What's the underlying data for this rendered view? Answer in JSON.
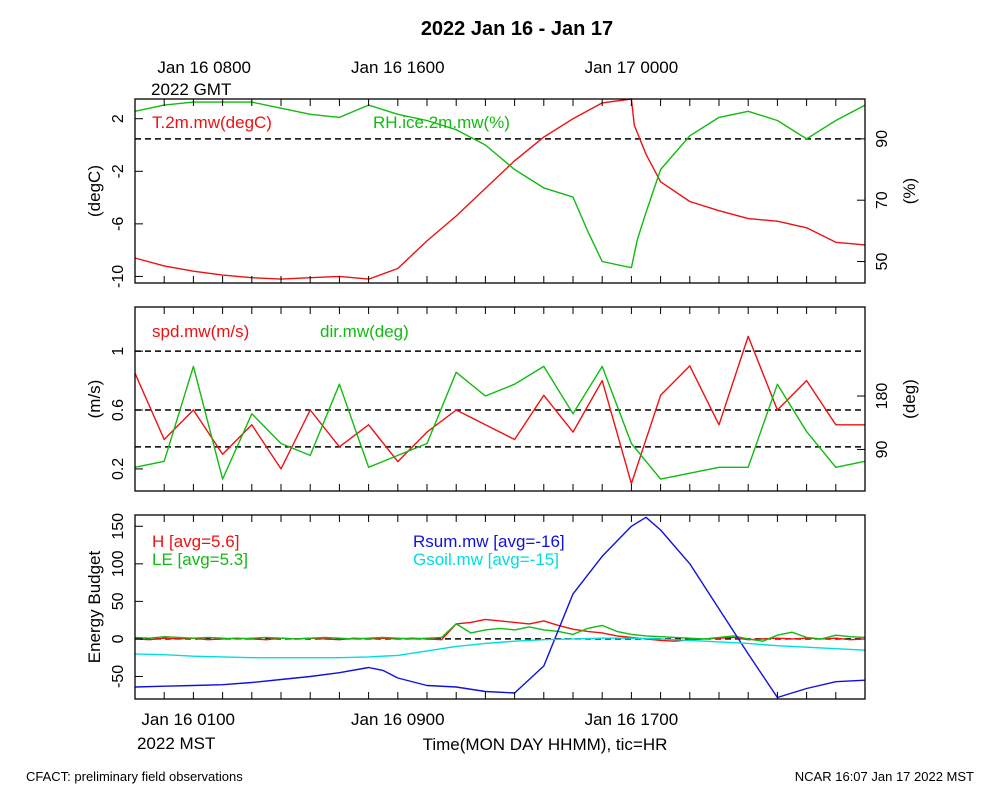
{
  "title": "2022 Jan 16 - Jan 17",
  "top_time_labels": [
    {
      "line1": "Jan 16 0800",
      "line2": "2022 GMT",
      "hour": 1
    },
    {
      "line1": "Jan 16 1600",
      "line2": "",
      "hour": 9
    },
    {
      "line1": "Jan 17 0000",
      "line2": "",
      "hour": 17
    }
  ],
  "bottom_time_labels": [
    {
      "line1": "Jan 16 0100",
      "line2": "2022 MST",
      "hour": 1
    },
    {
      "line1": "Jan 16 0900",
      "line2": "",
      "hour": 9
    },
    {
      "line1": "Jan 16 1700",
      "line2": "",
      "hour": 17
    }
  ],
  "xlabel": "Time(MON DAY HHMM), tic=HR",
  "footer_left": "CFACT: preliminary field observations",
  "footer_right": "NCAR 16:07 Jan 17 2022 MST",
  "colors": {
    "red": "#ee1111",
    "green": "#11bb11",
    "blue": "#1111dd",
    "cyan": "#00dddd"
  },
  "chart_data": [
    {
      "type": "line",
      "x_range_hours": [
        0,
        25
      ],
      "ylabel": "(degC)",
      "ylim": [
        -10.5,
        3.5
      ],
      "yticks": [
        2,
        -2,
        -6,
        -10
      ],
      "y2label": "(%)",
      "y2lim": [
        43,
        103
      ],
      "y2ticks": [
        90,
        70,
        50
      ],
      "reference_lines_y2": [
        90
      ],
      "series": [
        {
          "name": "T.2m.mw(degC)",
          "axis": "left",
          "color": "#ee1111",
          "x": [
            0,
            1,
            2,
            3,
            4,
            5,
            6,
            7,
            8,
            9,
            10,
            11,
            12,
            13,
            14,
            15,
            16,
            17,
            17.1,
            17.5,
            18,
            19,
            20,
            21,
            22,
            23,
            24,
            25
          ],
          "values": [
            -8.6,
            -9.2,
            -9.6,
            -9.9,
            -10.1,
            -10.2,
            -10.1,
            -10.0,
            -10.2,
            -9.4,
            -7.3,
            -5.4,
            -3.3,
            -1.2,
            0.6,
            2.0,
            3.2,
            3.5,
            1.5,
            -0.7,
            -2.8,
            -4.3,
            -5.0,
            -5.6,
            -5.8,
            -6.3,
            -7.4,
            -7.6
          ]
        },
        {
          "name": "RH.ice.2m.mw(%)",
          "axis": "right",
          "color": "#11bb11",
          "x": [
            0,
            1,
            2,
            3,
            4,
            5,
            6,
            7,
            8,
            9,
            10,
            11,
            12,
            13,
            14,
            15,
            15.5,
            16,
            17,
            17.2,
            17.5,
            18,
            19,
            20,
            21,
            22,
            23,
            24,
            25
          ],
          "values": [
            99,
            101,
            102,
            102,
            102,
            100,
            98,
            97,
            101,
            98,
            96,
            93,
            88,
            80,
            74,
            71,
            60,
            50,
            48,
            57,
            66,
            80,
            91,
            97,
            99,
            96,
            90,
            96,
            101
          ]
        }
      ]
    },
    {
      "type": "line",
      "x_range_hours": [
        0,
        25
      ],
      "ylabel": "(m/s)",
      "ylim": [
        0.05,
        1.3
      ],
      "yticks": [
        1.0,
        0.6,
        0.2
      ],
      "y2label": "(deg)",
      "y2lim": [
        20,
        330
      ],
      "y2ticks": [
        180,
        90
      ],
      "reference_lines_y": [
        1.0,
        0.6,
        0.35
      ],
      "series": [
        {
          "name": "spd.mw(m/s)",
          "axis": "left",
          "color": "#ee1111",
          "x": [
            0,
            1,
            2,
            3,
            4,
            5,
            6,
            7,
            8,
            9,
            10,
            11,
            12,
            13,
            14,
            15,
            16,
            17,
            18,
            19,
            20,
            21,
            22,
            23,
            24,
            25
          ],
          "values": [
            0.85,
            0.4,
            0.6,
            0.3,
            0.5,
            0.2,
            0.6,
            0.35,
            0.5,
            0.25,
            0.45,
            0.6,
            0.5,
            0.4,
            0.7,
            0.45,
            0.8,
            0.1,
            0.7,
            0.9,
            0.5,
            1.1,
            0.6,
            0.8,
            0.5,
            0.5
          ]
        },
        {
          "name": "dir.mw(deg)",
          "axis": "right",
          "color": "#11bb11",
          "x": [
            0,
            1,
            2,
            3,
            4,
            5,
            6,
            7,
            8,
            9,
            10,
            11,
            12,
            13,
            14,
            15,
            16,
            17,
            18,
            19,
            20,
            21,
            22,
            23,
            24,
            25
          ],
          "values": [
            60,
            70,
            230,
            40,
            150,
            100,
            80,
            200,
            60,
            80,
            100,
            220,
            180,
            200,
            230,
            150,
            230,
            100,
            40,
            50,
            60,
            60,
            200,
            120,
            60,
            70
          ]
        }
      ]
    },
    {
      "type": "line",
      "x_range_hours": [
        0,
        25
      ],
      "ylabel": "Energy Budget",
      "ylim": [
        -80,
        165
      ],
      "yticks": [
        150,
        100,
        50,
        0,
        -50
      ],
      "reference_lines_y": [
        0
      ],
      "series": [
        {
          "name": "H [avg=5.6]",
          "color": "#ee1111",
          "x": [
            0,
            0.5,
            1,
            1.5,
            2,
            2.5,
            3,
            3.5,
            4,
            4.5,
            5,
            5.5,
            6,
            6.5,
            7,
            7.5,
            8,
            8.5,
            9,
            9.5,
            10,
            10.5,
            11,
            11.5,
            12,
            12.5,
            13,
            13.5,
            14,
            14.5,
            15,
            15.5,
            16,
            16.5,
            17,
            17.5,
            18,
            18.5,
            19,
            19.5,
            20,
            20.5,
            21,
            21.5,
            22,
            22.5,
            23,
            23.5,
            24,
            24.5,
            25
          ],
          "values": [
            0,
            -1,
            1,
            0,
            1,
            -1,
            0,
            1,
            0,
            -1,
            1,
            0,
            1,
            0,
            -1,
            1,
            0,
            1,
            0,
            1,
            0,
            -1,
            20,
            22,
            26,
            24,
            22,
            20,
            24,
            18,
            13,
            10,
            8,
            4,
            2,
            0,
            -2,
            -3,
            -1,
            0,
            1,
            2,
            -1,
            0,
            1,
            0,
            1,
            0,
            1,
            -1,
            0
          ]
        },
        {
          "name": "LE [avg=5.3]",
          "color": "#11bb11",
          "x": [
            0,
            0.5,
            1,
            1.5,
            2,
            2.5,
            3,
            3.5,
            4,
            4.5,
            5,
            5.5,
            6,
            6.5,
            7,
            7.5,
            8,
            8.5,
            9,
            9.5,
            10,
            10.5,
            11,
            11.5,
            12,
            12.5,
            13,
            13.5,
            14,
            14.5,
            15,
            15.5,
            16,
            16.5,
            17,
            17.5,
            18,
            18.5,
            19,
            19.5,
            20,
            20.5,
            21,
            21.5,
            22,
            22.5,
            23,
            23.5,
            24,
            24.5,
            25
          ],
          "values": [
            2,
            1,
            3,
            2,
            1,
            2,
            1,
            0,
            1,
            2,
            1,
            0,
            1,
            2,
            1,
            0,
            1,
            2,
            1,
            0,
            1,
            2,
            20,
            8,
            12,
            14,
            12,
            16,
            12,
            10,
            6,
            14,
            18,
            10,
            6,
            4,
            3,
            2,
            1,
            0,
            2,
            4,
            0,
            -3,
            5,
            9,
            2,
            0,
            5,
            3,
            2
          ]
        },
        {
          "name": "Rsum.mw [avg=-16]",
          "color": "#1111dd",
          "x": [
            0,
            1,
            2,
            3,
            4,
            5,
            6,
            7,
            8,
            8.5,
            9,
            10,
            11,
            12,
            13,
            14,
            15,
            16,
            17,
            17.5,
            18,
            19,
            20,
            21,
            22,
            23,
            24,
            25
          ],
          "values": [
            -64,
            -63,
            -62,
            -61,
            -58,
            -54,
            -50,
            -45,
            -38,
            -42,
            -52,
            -62,
            -64,
            -70,
            -72,
            -36,
            60,
            110,
            150,
            162,
            145,
            100,
            40,
            -20,
            -78,
            -66,
            -57,
            -55
          ]
        },
        {
          "name": "Gsoil.mw [avg=-15]",
          "color": "#00dddd",
          "x": [
            0,
            1,
            2,
            3,
            4,
            5,
            6,
            7,
            8,
            9,
            10,
            11,
            12,
            13,
            14,
            15,
            16,
            17,
            18,
            19,
            20,
            21,
            22,
            23,
            24,
            25
          ],
          "values": [
            -20,
            -21,
            -23,
            -24,
            -25,
            -25,
            -25,
            -25,
            -24,
            -22,
            -16,
            -10,
            -6,
            -3,
            -1,
            0,
            1,
            1,
            0,
            -2,
            -4,
            -6,
            -9,
            -11,
            -13,
            -15
          ]
        }
      ]
    }
  ]
}
